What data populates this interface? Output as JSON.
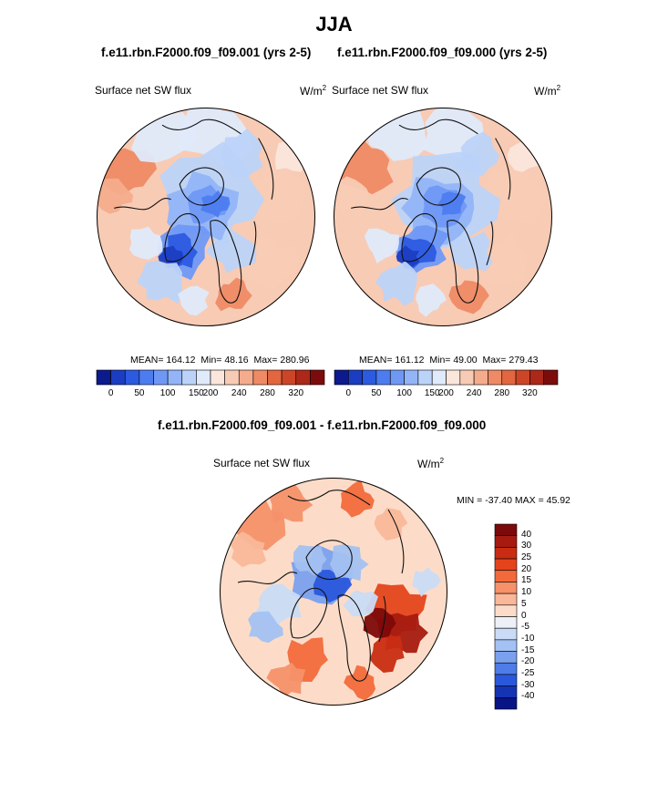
{
  "figure": {
    "title": "JJA",
    "left_panel": {
      "case": "f.e11.rbn.F2000.f09_f09.001 (yrs 2-5)",
      "variable": "Surface net SW flux",
      "units": "W/m",
      "units_exp": "2",
      "mean_label": "MEAN=",
      "mean": "164.12",
      "min_label": "Min=",
      "min": "48.16",
      "max_label": "Max=",
      "max": "280.96"
    },
    "right_panel": {
      "case": "f.e11.rbn.F2000.f09_f09.000 (yrs 2-5)",
      "variable": "Surface net SW flux",
      "units": "W/m",
      "units_exp": "2",
      "mean_label": "MEAN=",
      "mean": "161.12",
      "min_label": "Min=",
      "min": "49.00",
      "max_label": "Max=",
      "max": "279.43"
    },
    "diff_panel": {
      "title": "f.e11.rbn.F2000.f09_f09.001 - f.e11.rbn.F2000.f09_f09.000",
      "variable": "Surface net SW flux",
      "units": "W/m",
      "units_exp": "2",
      "minmax_text": "MIN = -37.40 MAX =  45.92"
    }
  },
  "chart_data": [
    {
      "type": "heatmap",
      "projection": "north-polar-stereographic",
      "title": "f.e11.rbn.F2000.f09_f09.001 (yrs 2-5)",
      "variable": "Surface net SW flux",
      "units": "W/m2",
      "mean": 164.12,
      "min": 48.16,
      "max": 280.96,
      "colorbar_ticks": [
        "0",
        "50",
        "100",
        "150",
        "200",
        "240",
        "280",
        "320"
      ],
      "colorbar_colors": [
        "#0b1a8c",
        "#1b3dc2",
        "#2c5ae0",
        "#4d7cf0",
        "#6f98f5",
        "#93b5f7",
        "#bcd3f9",
        "#dfeafb",
        "#fbe6dc",
        "#f8cbb5",
        "#f4ac8c",
        "#ee8a65",
        "#e2663f",
        "#cc4527",
        "#ac2818",
        "#7c0c0c"
      ]
    },
    {
      "type": "heatmap",
      "projection": "north-polar-stereographic",
      "title": "f.e11.rbn.F2000.f09_f09.000 (yrs 2-5)",
      "variable": "Surface net SW flux",
      "units": "W/m2",
      "mean": 161.12,
      "min": 49.0,
      "max": 279.43,
      "colorbar_ticks": [
        "0",
        "50",
        "100",
        "150",
        "200",
        "240",
        "280",
        "320"
      ],
      "colorbar_colors": [
        "#0b1a8c",
        "#1b3dc2",
        "#2c5ae0",
        "#4d7cf0",
        "#6f98f5",
        "#93b5f7",
        "#bcd3f9",
        "#dfeafb",
        "#fbe6dc",
        "#f8cbb5",
        "#f4ac8c",
        "#ee8a65",
        "#e2663f",
        "#cc4527",
        "#ac2818",
        "#7c0c0c"
      ]
    },
    {
      "type": "heatmap",
      "projection": "north-polar-stereographic",
      "title": "f.e11.rbn.F2000.f09_f09.001 - f.e11.rbn.F2000.f09_f09.000",
      "variable": "Surface net SW flux",
      "units": "W/m2",
      "min": -37.4,
      "max": 45.92,
      "colorbar_ticks": [
        "40",
        "30",
        "25",
        "20",
        "15",
        "10",
        "5",
        "0",
        "-5",
        "-10",
        "-15",
        "-20",
        "-25",
        "-30",
        "-40"
      ],
      "colorbar_colors": [
        "#7d0a0a",
        "#a61a10",
        "#c92c12",
        "#e4441c",
        "#f26a3c",
        "#f6916a",
        "#f9b89a",
        "#fcdcc8",
        "#eef0f8",
        "#c9dbf6",
        "#a3c1f2",
        "#7aa0ee",
        "#4e7ce8",
        "#2a58dc",
        "#1534b4",
        "#081486"
      ]
    }
  ]
}
